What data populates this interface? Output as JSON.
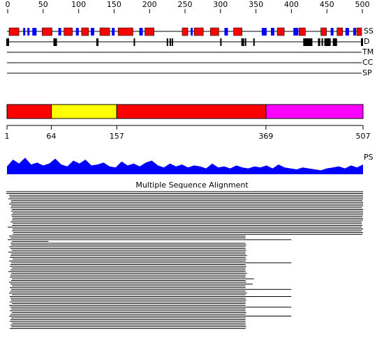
{
  "ruler": {
    "lim": [
      0,
      500
    ],
    "ticks": [
      0,
      50,
      100,
      150,
      200,
      250,
      300,
      350,
      400,
      450,
      500
    ]
  },
  "tracks": {
    "ss": {
      "label": "SS",
      "helix_color": "#ff0000",
      "strand_color": "#0000ff",
      "helices": [
        [
          4,
          18
        ],
        [
          51,
          65
        ],
        [
          82,
          94
        ],
        [
          107,
          117
        ],
        [
          133,
          147
        ],
        [
          159,
          180
        ],
        [
          197,
          210
        ],
        [
          250,
          258
        ],
        [
          267,
          280
        ],
        [
          290,
          302
        ],
        [
          323,
          335
        ],
        [
          385,
          395
        ],
        [
          416,
          425
        ],
        [
          447,
          455
        ],
        [
          470,
          478
        ],
        [
          498,
          505
        ]
      ],
      "strands": [
        [
          24,
          27
        ],
        [
          30,
          33
        ],
        [
          37,
          43
        ],
        [
          74,
          78
        ],
        [
          99,
          103
        ],
        [
          120,
          125
        ],
        [
          150,
          154
        ],
        [
          189,
          194
        ],
        [
          262,
          265
        ],
        [
          310,
          315
        ],
        [
          363,
          370
        ],
        [
          376,
          381
        ],
        [
          408,
          415
        ],
        [
          461,
          465
        ],
        [
          482,
          487
        ],
        [
          493,
          497
        ]
      ]
    },
    "d": {
      "label": "D",
      "color": "#000000",
      "regions": [
        [
          0,
          4
        ],
        [
          67,
          72
        ],
        [
          128,
          131
        ],
        [
          181,
          183
        ],
        [
          228,
          230
        ],
        [
          232,
          234
        ],
        [
          235,
          237
        ],
        [
          304,
          306
        ],
        [
          334,
          338
        ],
        [
          339,
          341
        ],
        [
          351,
          353
        ],
        [
          422,
          435
        ],
        [
          443,
          446
        ],
        [
          448,
          450
        ],
        [
          452,
          461
        ],
        [
          464,
          470
        ],
        [
          504,
          507
        ]
      ]
    },
    "tm": {
      "label": "TM"
    },
    "cc": {
      "label": "CC"
    },
    "sp": {
      "label": "SP"
    }
  },
  "domains": {
    "segments": [
      {
        "start": 1,
        "end": 64,
        "color": "#ff0000"
      },
      {
        "start": 64,
        "end": 157,
        "color": "#ffff00"
      },
      {
        "start": 157,
        "end": 369,
        "color": "#ff0000"
      },
      {
        "start": 369,
        "end": 507,
        "color": "#ff00ff"
      }
    ],
    "ticks": [
      1,
      64,
      157,
      369,
      507
    ]
  },
  "ps": {
    "label": "PS",
    "color": "#0000ff",
    "values": [
      40,
      75,
      55,
      85,
      50,
      60,
      45,
      55,
      80,
      50,
      40,
      70,
      55,
      75,
      45,
      50,
      60,
      40,
      35,
      65,
      45,
      55,
      40,
      60,
      70,
      45,
      35,
      55,
      40,
      50,
      35,
      45,
      40,
      30,
      55,
      35,
      40,
      30,
      45,
      35,
      30,
      40,
      35,
      45,
      30,
      50,
      35,
      30,
      25,
      35,
      30,
      25,
      20,
      30,
      35,
      40,
      30,
      45,
      35,
      50
    ]
  },
  "msa": {
    "title": "Multiple Sequence Alignment",
    "rows": [
      [
        0,
        507
      ],
      [
        0,
        507
      ],
      [
        4,
        507
      ],
      [
        5,
        507
      ],
      [
        3,
        507
      ],
      [
        7,
        506
      ],
      [
        6,
        507
      ],
      [
        4,
        507
      ],
      [
        7,
        507
      ],
      [
        6,
        505
      ],
      [
        8,
        507
      ],
      [
        7,
        507
      ],
      [
        9,
        507
      ],
      [
        7,
        507
      ],
      [
        8,
        506
      ],
      [
        9,
        507
      ],
      [
        8,
        507
      ],
      [
        6,
        505
      ],
      [
        9,
        505
      ],
      [
        8,
        506
      ],
      [
        2,
        505
      ],
      [
        9,
        507
      ],
      [
        8,
        505
      ],
      [
        10,
        507
      ],
      [
        9,
        506
      ],
      [
        4,
        340
      ],
      [
        6,
        340
      ],
      [
        2,
        405
      ],
      [
        8,
        60
      ],
      [
        6,
        340
      ],
      [
        7,
        341
      ],
      [
        4,
        340
      ],
      [
        6,
        340
      ],
      [
        8,
        341
      ],
      [
        3,
        340
      ],
      [
        7,
        340
      ],
      [
        6,
        342
      ],
      [
        5,
        340
      ],
      [
        9,
        341
      ],
      [
        4,
        340
      ],
      [
        7,
        405
      ],
      [
        6,
        340
      ],
      [
        5,
        341
      ],
      [
        8,
        340
      ],
      [
        6,
        340
      ],
      [
        3,
        340
      ],
      [
        7,
        342
      ],
      [
        6,
        340
      ],
      [
        5,
        340
      ],
      [
        8,
        352
      ],
      [
        7,
        340
      ],
      [
        4,
        341
      ],
      [
        6,
        350
      ],
      [
        8,
        340
      ],
      [
        5,
        340
      ],
      [
        7,
        405
      ],
      [
        6,
        340
      ],
      [
        4,
        342
      ],
      [
        8,
        340
      ],
      [
        5,
        405
      ],
      [
        6,
        340
      ],
      [
        7,
        341
      ],
      [
        5,
        340
      ],
      [
        8,
        340
      ],
      [
        4,
        340
      ],
      [
        6,
        405
      ],
      [
        7,
        340
      ],
      [
        5,
        340
      ],
      [
        8,
        341
      ],
      [
        6,
        340
      ],
      [
        4,
        405
      ],
      [
        7,
        340
      ],
      [
        6,
        340
      ],
      [
        5,
        340
      ],
      [
        8,
        340
      ],
      [
        6,
        340
      ],
      [
        7,
        341
      ],
      [
        5,
        340
      ]
    ]
  }
}
